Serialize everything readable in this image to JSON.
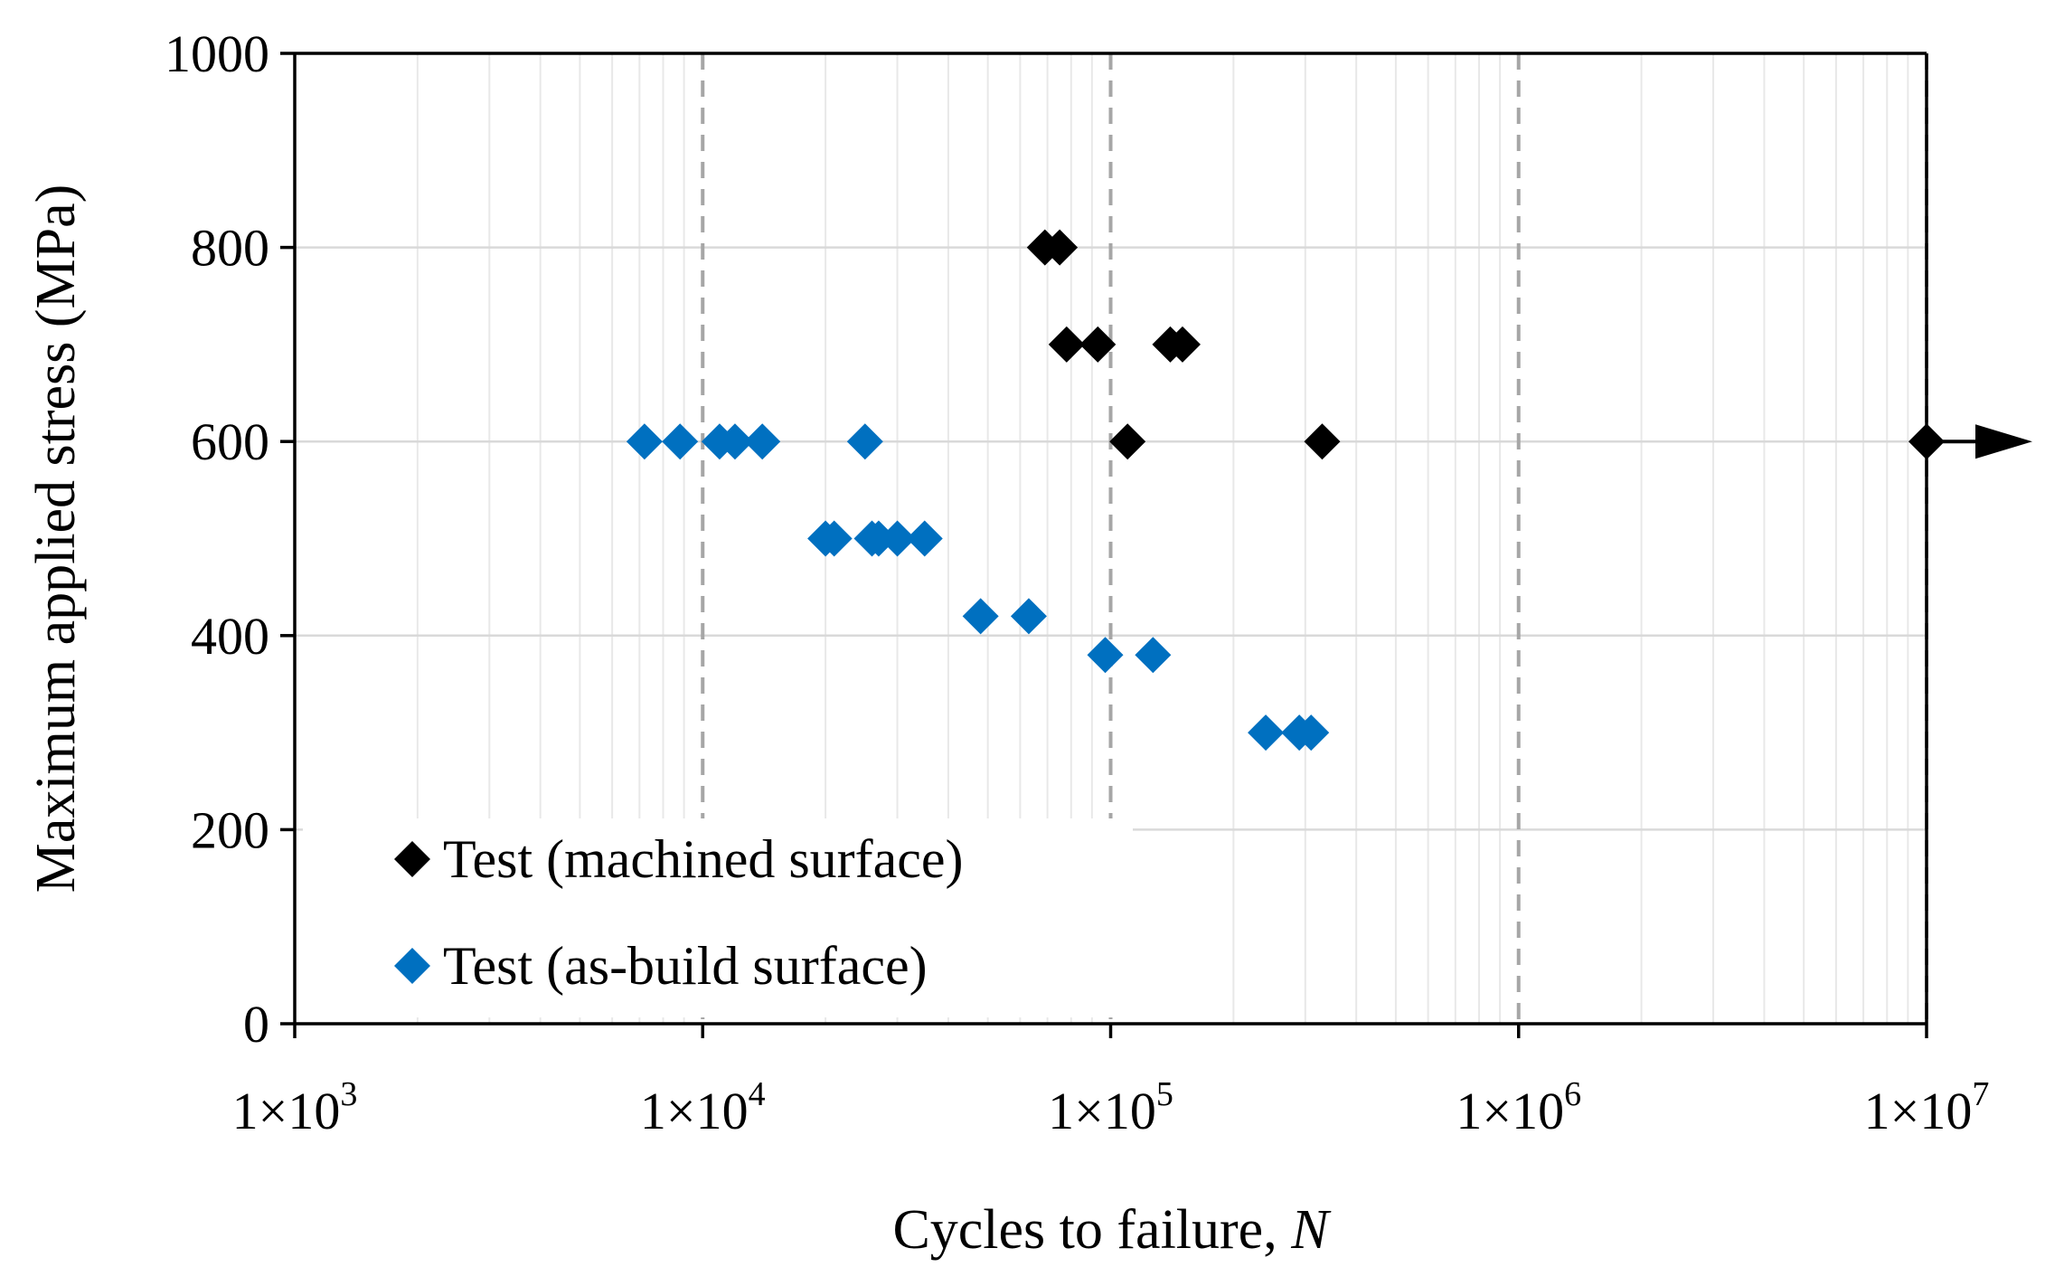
{
  "chart_data": {
    "type": "scatter",
    "xscale": "log",
    "xlim": [
      1000,
      10000000
    ],
    "ylim": [
      0,
      1000
    ],
    "xlabel_main": "Cycles to failure, ",
    "xlabel_var": "N",
    "ylabel": "Maximum applied stress (MPa)",
    "x_ticks": [
      {
        "value": 1000,
        "mantissa": "1×10",
        "exp": "3"
      },
      {
        "value": 10000,
        "mantissa": "1×10",
        "exp": "4"
      },
      {
        "value": 100000,
        "mantissa": "1×10",
        "exp": "5"
      },
      {
        "value": 1000000,
        "mantissa": "1×10",
        "exp": "6"
      },
      {
        "value": 10000000,
        "mantissa": "1×10",
        "exp": "7"
      }
    ],
    "y_ticks": [
      {
        "value": 0,
        "label": "0"
      },
      {
        "value": 200,
        "label": "200"
      },
      {
        "value": 400,
        "label": "400"
      },
      {
        "value": 600,
        "label": "600"
      },
      {
        "value": 800,
        "label": "800"
      },
      {
        "value": 1000,
        "label": "1000"
      }
    ],
    "legend_position": "bottom-left",
    "runout_arrow": {
      "x": 10000000,
      "y": 600,
      "note": "runout"
    },
    "series": [
      {
        "name": "Test (machined surface)",
        "color": "#000000",
        "marker": "diamond",
        "points": [
          {
            "x": 69000,
            "y": 800
          },
          {
            "x": 75000,
            "y": 800
          },
          {
            "x": 78000,
            "y": 700
          },
          {
            "x": 93000,
            "y": 700
          },
          {
            "x": 140000,
            "y": 700
          },
          {
            "x": 150000,
            "y": 700
          },
          {
            "x": 110000,
            "y": 600
          },
          {
            "x": 330000,
            "y": 600
          },
          {
            "x": 10000000,
            "y": 600
          }
        ]
      },
      {
        "name": "Test (as-build surface)",
        "color": "#0070c0",
        "marker": "diamond",
        "points": [
          {
            "x": 7200,
            "y": 600
          },
          {
            "x": 8800,
            "y": 600
          },
          {
            "x": 11000,
            "y": 600
          },
          {
            "x": 12000,
            "y": 600
          },
          {
            "x": 14000,
            "y": 600
          },
          {
            "x": 25000,
            "y": 600
          },
          {
            "x": 20000,
            "y": 500
          },
          {
            "x": 21000,
            "y": 500
          },
          {
            "x": 26000,
            "y": 500
          },
          {
            "x": 27000,
            "y": 500
          },
          {
            "x": 30000,
            "y": 500
          },
          {
            "x": 35000,
            "y": 500
          },
          {
            "x": 48000,
            "y": 420
          },
          {
            "x": 63000,
            "y": 420
          },
          {
            "x": 97000,
            "y": 380
          },
          {
            "x": 127000,
            "y": 380
          },
          {
            "x": 240000,
            "y": 300
          },
          {
            "x": 290000,
            "y": 300
          },
          {
            "x": 310000,
            "y": 300
          }
        ]
      }
    ]
  }
}
